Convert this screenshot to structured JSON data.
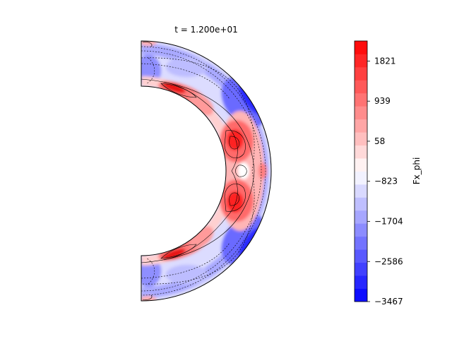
{
  "chart_data": {
    "type": "heatmap",
    "title": "t = 1.200e+01",
    "projection": "meridional half-annulus (right half of a spherical shell)",
    "field": "Fx_phi",
    "colorbar": {
      "label": "Fx_phi",
      "colormap": "bwr",
      "range": [
        -3467,
        2262
      ],
      "levels": 20,
      "ticks": [
        -3467,
        -2586,
        -1704,
        -823,
        58,
        939,
        1821
      ],
      "tick_labels": [
        "−3467",
        "−2586",
        "−1704",
        "−823",
        "58",
        "939",
        "1821"
      ]
    },
    "contour_lines": "black, dashed for negative levels, solid for positive levels",
    "features": [
      {
        "name": "inner-shell-upper-maximum",
        "sign": "positive",
        "value_approx": 2200
      },
      {
        "name": "inner-shell-lower-maximum",
        "sign": "positive",
        "value_approx": 2200
      },
      {
        "name": "polar-boundary-bands",
        "sign": "positive",
        "value_approx": 1800
      },
      {
        "name": "outer-equatorial-minima",
        "sign": "negative",
        "value_approx": -3000
      }
    ]
  },
  "colors": {
    "negative_extreme": "#0000ff",
    "zero": "#ffffff",
    "positive_extreme": "#ff0000",
    "contour": "#000000"
  }
}
